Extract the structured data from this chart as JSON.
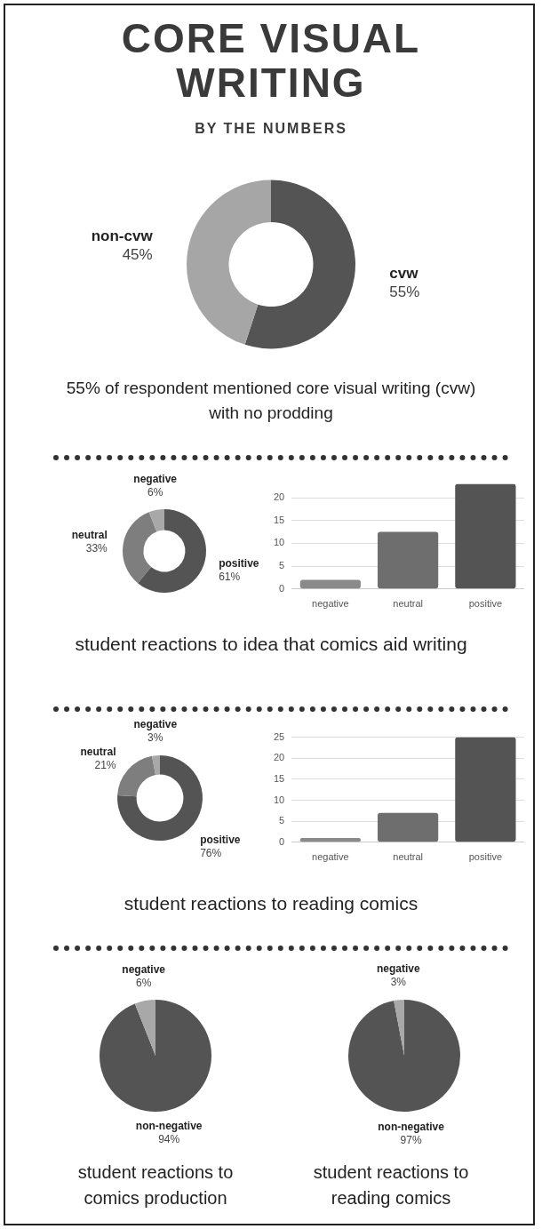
{
  "chart_data": [
    {
      "type": "donut",
      "title": "CORE VISUAL WRITING",
      "subtitle": "BY THE NUMBERS",
      "categories": [
        "cvw",
        "non-cvw"
      ],
      "values": [
        55,
        45
      ],
      "colors": [
        "#545454",
        "#a6a6a6"
      ],
      "value_labels": [
        "55%",
        "45%"
      ],
      "annotations": [
        "55% of respondent mentioned core visual writing (cvw) with no prodding"
      ]
    },
    {
      "type": "donut",
      "categories": [
        "positive",
        "neutral",
        "negative"
      ],
      "values": [
        61,
        33,
        6
      ],
      "colors": [
        "#545454",
        "#7e7e7e",
        "#a8a8a8"
      ],
      "value_labels": [
        "61%",
        "33%",
        "6%"
      ],
      "annotations": [
        "student reactions to idea that comics aid writing"
      ]
    },
    {
      "type": "bar",
      "categories": [
        "negative",
        "neutral",
        "positive"
      ],
      "values": [
        2,
        12.5,
        23
      ],
      "colors": [
        "#8a8a8a",
        "#6e6e6e",
        "#545454"
      ],
      "ylim": [
        0,
        23
      ],
      "yticks": [
        0,
        5,
        10,
        15,
        20
      ],
      "grid": "y"
    },
    {
      "type": "donut",
      "categories": [
        "positive",
        "neutral",
        "negative"
      ],
      "values": [
        76,
        21,
        3
      ],
      "colors": [
        "#545454",
        "#7e7e7e",
        "#a8a8a8"
      ],
      "value_labels": [
        "76%",
        "21%",
        "3%"
      ],
      "annotations": [
        "student reactions to reading comics"
      ]
    },
    {
      "type": "bar",
      "categories": [
        "negative",
        "neutral",
        "positive"
      ],
      "values": [
        1,
        7,
        25
      ],
      "colors": [
        "#8a8a8a",
        "#6e6e6e",
        "#545454"
      ],
      "ylim": [
        0,
        25
      ],
      "yticks": [
        0,
        5,
        10,
        15,
        20,
        25
      ],
      "grid": "y"
    },
    {
      "type": "pie",
      "categories": [
        "non-negative",
        "negative"
      ],
      "values": [
        94,
        6
      ],
      "colors": [
        "#545454",
        "#a8a8a8"
      ],
      "value_labels": [
        "94%",
        "6%"
      ],
      "annotations": [
        "student reactions to comics production"
      ]
    },
    {
      "type": "pie",
      "categories": [
        "non-negative",
        "negative"
      ],
      "values": [
        97,
        3
      ],
      "colors": [
        "#545454",
        "#a8a8a8"
      ],
      "value_labels": [
        "97%",
        "3%"
      ],
      "annotations": [
        "student reactions to reading comics"
      ]
    }
  ]
}
